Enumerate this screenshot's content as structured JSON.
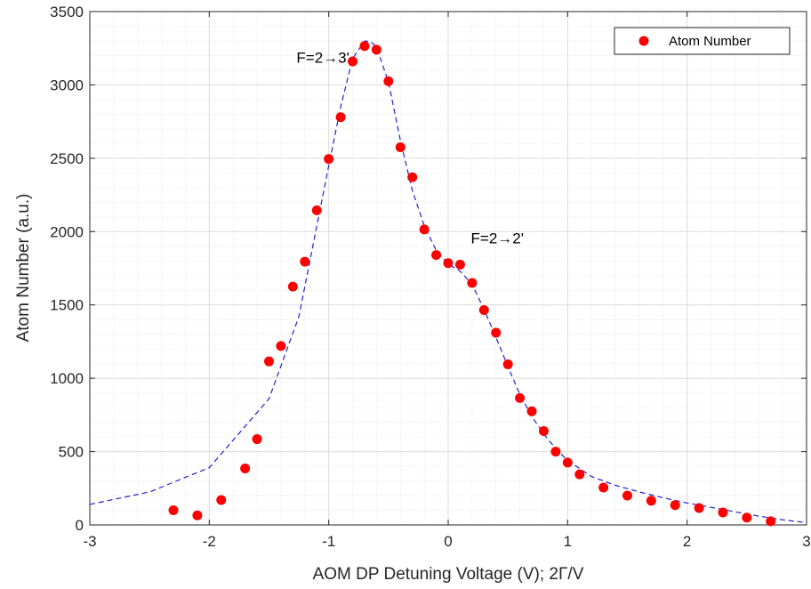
{
  "chart_data": {
    "type": "scatter",
    "xlabel": "AOM DP Detuning Voltage (V); 2Γ/V",
    "ylabel": "Atom Number (a.u.)",
    "xlim": [
      -3,
      3
    ],
    "ylim": [
      0,
      3500
    ],
    "xticks": [
      -3,
      -2,
      -1,
      0,
      1,
      2,
      3
    ],
    "yticks": [
      0,
      500,
      1000,
      1500,
      2000,
      2500,
      3000,
      3500
    ],
    "grid": true,
    "minor_grid": true,
    "legend_position": "top-right",
    "series": [
      {
        "name": "Atom Number",
        "kind": "scatter",
        "color": "#ff0000",
        "x": [
          -2.3,
          -2.1,
          -1.9,
          -1.7,
          -1.6,
          -1.5,
          -1.4,
          -1.3,
          -1.2,
          -1.1,
          -1.0,
          -0.9,
          -0.8,
          -0.7,
          -0.6,
          -0.5,
          -0.4,
          -0.3,
          -0.2,
          -0.1,
          0.0,
          0.1,
          0.2,
          0.3,
          0.4,
          0.5,
          0.6,
          0.7,
          0.8,
          0.9,
          1.0,
          1.1,
          1.3,
          1.5,
          1.7,
          1.9,
          2.1,
          2.3,
          2.5,
          2.7
        ],
        "y": [
          100,
          65,
          170,
          385,
          585,
          1115,
          1220,
          1625,
          1795,
          2145,
          2495,
          2780,
          3160,
          3265,
          3240,
          3025,
          2575,
          2370,
          2015,
          1840,
          1785,
          1775,
          1650,
          1465,
          1310,
          1095,
          865,
          775,
          640,
          500,
          425,
          345,
          255,
          200,
          165,
          135,
          115,
          85,
          50,
          25
        ]
      },
      {
        "name": "",
        "kind": "fit",
        "style": "dashed",
        "color": "#1f1fd0",
        "x": [
          -3.0,
          -2.5,
          -2.0,
          -1.5,
          -1.25,
          -1.0,
          -0.9,
          -0.8,
          -0.7,
          -0.65,
          -0.6,
          -0.5,
          -0.4,
          -0.3,
          -0.2,
          -0.1,
          0.0,
          0.1,
          0.2,
          0.3,
          0.4,
          0.5,
          0.6,
          0.7,
          0.8,
          0.9,
          1.0,
          1.2,
          1.4,
          1.6,
          1.8,
          2.0,
          2.2,
          2.4,
          2.6,
          2.8,
          3.0
        ],
        "y": [
          140,
          225,
          390,
          860,
          1420,
          2450,
          2850,
          3180,
          3300,
          3295,
          3260,
          3020,
          2620,
          2280,
          2040,
          1870,
          1780,
          1730,
          1640,
          1470,
          1280,
          1080,
          890,
          740,
          620,
          520,
          440,
          330,
          270,
          225,
          185,
          150,
          120,
          90,
          60,
          35,
          15
        ]
      }
    ],
    "annotations": [
      {
        "text": "F=2→3'",
        "x": -1.27,
        "y": 3150
      },
      {
        "text": "F=2→2'",
        "x": 0.19,
        "y": 1920
      }
    ]
  }
}
